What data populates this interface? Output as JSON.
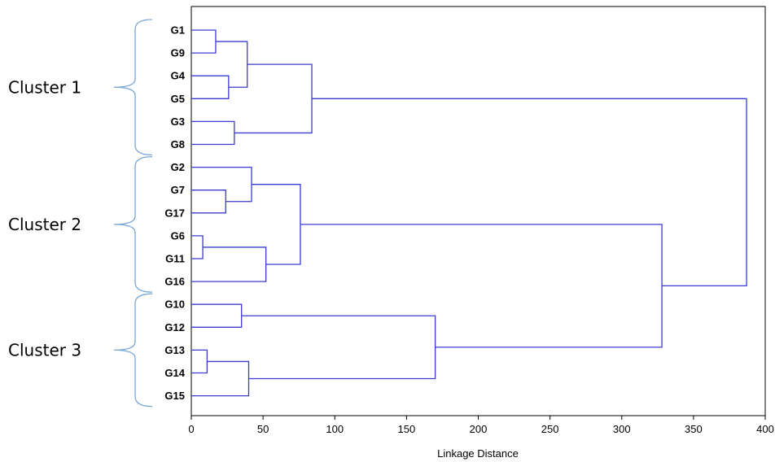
{
  "chart_data": {
    "type": "dendrogram",
    "orientation": "horizontal",
    "xlabel": "Linkage Distance",
    "xlim": [
      0,
      400
    ],
    "xticks": [
      0,
      50,
      100,
      150,
      200,
      250,
      300,
      350,
      400
    ],
    "leaves": [
      "G1",
      "G9",
      "G4",
      "G5",
      "G3",
      "G8",
      "G2",
      "G7",
      "G17",
      "G6",
      "G11",
      "G16",
      "G10",
      "G12",
      "G13",
      "G14",
      "G15"
    ],
    "merges": [
      {
        "id": "m1",
        "children": [
          "G1",
          "G9"
        ],
        "distance": 17
      },
      {
        "id": "m2",
        "children": [
          "G4",
          "G5"
        ],
        "distance": 26
      },
      {
        "id": "m3",
        "children": [
          "m1",
          "m2"
        ],
        "distance": 39
      },
      {
        "id": "m4",
        "children": [
          "G3",
          "G8"
        ],
        "distance": 30
      },
      {
        "id": "m5",
        "children": [
          "m3",
          "m4"
        ],
        "distance": 84
      },
      {
        "id": "m6",
        "children": [
          "G7",
          "G17"
        ],
        "distance": 24
      },
      {
        "id": "m7",
        "children": [
          "G2",
          "m6"
        ],
        "distance": 42
      },
      {
        "id": "m8",
        "children": [
          "G6",
          "G11"
        ],
        "distance": 8
      },
      {
        "id": "m9",
        "children": [
          "m8",
          "G16"
        ],
        "distance": 52
      },
      {
        "id": "m10",
        "children": [
          "m7",
          "m9"
        ],
        "distance": 76
      },
      {
        "id": "m11",
        "children": [
          "G10",
          "G12"
        ],
        "distance": 35
      },
      {
        "id": "m12",
        "children": [
          "G13",
          "G14"
        ],
        "distance": 11
      },
      {
        "id": "m13",
        "children": [
          "m12",
          "G15"
        ],
        "distance": 40
      },
      {
        "id": "m14",
        "children": [
          "m11",
          "m13"
        ],
        "distance": 170
      },
      {
        "id": "m15",
        "children": [
          "m10",
          "m14"
        ],
        "distance": 328
      },
      {
        "id": "m16",
        "children": [
          "m5",
          "m15"
        ],
        "distance": 387
      }
    ],
    "clusters": [
      {
        "label": "Cluster 1",
        "leaves": [
          "G1",
          "G9",
          "G4",
          "G5",
          "G3",
          "G8"
        ]
      },
      {
        "label": "Cluster 2",
        "leaves": [
          "G2",
          "G7",
          "G17",
          "G6",
          "G11",
          "G16"
        ]
      },
      {
        "label": "Cluster 3",
        "leaves": [
          "G10",
          "G12",
          "G13",
          "G14",
          "G15"
        ]
      }
    ],
    "colors": {
      "links": "#3b3bd0",
      "brace": "#7aa7d6",
      "frame": "#000000"
    }
  }
}
